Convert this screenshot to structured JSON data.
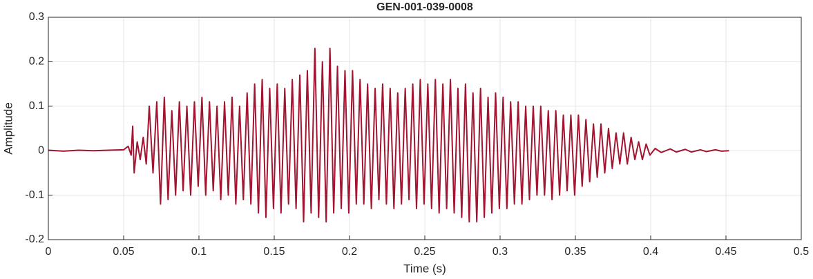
{
  "chart_data": {
    "type": "line",
    "title": "GEN-001-039-0008",
    "xlabel": "Time (s)",
    "ylabel": "Amplitude",
    "xlim": [
      0,
      0.5
    ],
    "ylim": [
      -0.2,
      0.3
    ],
    "xticks": [
      0,
      0.05,
      0.1,
      0.15,
      0.2,
      0.25,
      0.3,
      0.35,
      0.4,
      0.45,
      0.5
    ],
    "yticks": [
      -0.2,
      -0.1,
      0,
      0.1,
      0.2,
      0.3
    ],
    "grid": true,
    "color": "#a2142f",
    "x": [
      0,
      0.01,
      0.02,
      0.03,
      0.04,
      0.05,
      0.053,
      0.055,
      0.056,
      0.057,
      0.059,
      0.061,
      0.063,
      0.065,
      0.067,
      0.0695,
      0.072,
      0.0745,
      0.077,
      0.0795,
      0.082,
      0.0845,
      0.087,
      0.0895,
      0.092,
      0.0945,
      0.097,
      0.0995,
      0.102,
      0.1045,
      0.107,
      0.1095,
      0.112,
      0.1145,
      0.117,
      0.1195,
      0.122,
      0.1245,
      0.127,
      0.1295,
      0.132,
      0.1345,
      0.137,
      0.1395,
      0.142,
      0.1445,
      0.147,
      0.1495,
      0.152,
      0.1545,
      0.157,
      0.1595,
      0.162,
      0.1645,
      0.167,
      0.1695,
      0.172,
      0.1745,
      0.177,
      0.1795,
      0.182,
      0.1845,
      0.187,
      0.1895,
      0.192,
      0.1945,
      0.197,
      0.1995,
      0.202,
      0.2045,
      0.207,
      0.2095,
      0.212,
      0.2145,
      0.217,
      0.2195,
      0.222,
      0.2245,
      0.227,
      0.2295,
      0.232,
      0.2345,
      0.237,
      0.2395,
      0.242,
      0.2445,
      0.247,
      0.2495,
      0.252,
      0.2545,
      0.257,
      0.2595,
      0.262,
      0.2645,
      0.267,
      0.2695,
      0.272,
      0.2745,
      0.277,
      0.2795,
      0.282,
      0.2845,
      0.287,
      0.2895,
      0.292,
      0.2945,
      0.297,
      0.2995,
      0.302,
      0.3045,
      0.307,
      0.3095,
      0.312,
      0.3145,
      0.317,
      0.3195,
      0.322,
      0.3245,
      0.327,
      0.3295,
      0.332,
      0.3345,
      0.337,
      0.3395,
      0.342,
      0.3445,
      0.347,
      0.3495,
      0.352,
      0.3545,
      0.357,
      0.3595,
      0.362,
      0.3645,
      0.367,
      0.3695,
      0.372,
      0.3745,
      0.377,
      0.3795,
      0.382,
      0.3845,
      0.387,
      0.3895,
      0.392,
      0.3945,
      0.397,
      0.3995,
      0.403,
      0.407,
      0.413,
      0.417,
      0.423,
      0.427,
      0.433,
      0.437,
      0.443,
      0.447,
      0.452
    ],
    "values": [
      0.001,
      -0.001,
      0.001,
      0,
      0.001,
      0.002,
      0.01,
      -0.01,
      0.055,
      -0.05,
      0.02,
      -0.02,
      0.03,
      -0.03,
      0.1,
      -0.05,
      0.11,
      -0.12,
      0.12,
      -0.11,
      0.09,
      -0.1,
      0.11,
      -0.09,
      0.1,
      -0.1,
      0.11,
      -0.08,
      0.12,
      -0.1,
      0.11,
      -0.09,
      0.1,
      -0.11,
      0.11,
      -0.1,
      0.12,
      -0.12,
      0.1,
      -0.11,
      0.13,
      -0.12,
      0.15,
      -0.14,
      0.16,
      -0.15,
      0.14,
      -0.13,
      0.15,
      -0.14,
      0.14,
      -0.12,
      0.16,
      -0.13,
      0.17,
      -0.16,
      0.18,
      -0.14,
      0.23,
      -0.15,
      0.2,
      -0.16,
      0.23,
      -0.14,
      0.19,
      -0.13,
      0.18,
      -0.14,
      0.18,
      -0.12,
      0.16,
      -0.12,
      0.15,
      -0.13,
      0.14,
      -0.11,
      0.15,
      -0.12,
      0.14,
      -0.13,
      0.13,
      -0.12,
      0.14,
      -0.11,
      0.15,
      -0.13,
      0.16,
      -0.12,
      0.15,
      -0.13,
      0.16,
      -0.14,
      0.15,
      -0.13,
      0.16,
      -0.14,
      0.14,
      -0.15,
      0.15,
      -0.16,
      0.13,
      -0.16,
      0.14,
      -0.15,
      0.12,
      -0.14,
      0.13,
      -0.13,
      0.12,
      -0.13,
      0.11,
      -0.12,
      0.11,
      -0.12,
      0.1,
      -0.11,
      0.1,
      -0.1,
      0.1,
      -0.1,
      0.09,
      -0.11,
      0.09,
      -0.1,
      0.08,
      -0.09,
      0.08,
      -0.1,
      0.08,
      -0.08,
      0.07,
      -0.07,
      0.06,
      -0.06,
      0.06,
      -0.05,
      0.05,
      -0.04,
      0.04,
      -0.03,
      0.04,
      -0.03,
      0.03,
      -0.02,
      0.02,
      -0.02,
      0.015,
      -0.01,
      0.005,
      -0.004,
      0.004,
      -0.003,
      0.003,
      -0.003,
      0.002,
      -0.002,
      0.002,
      -0.001,
      0
    ]
  }
}
